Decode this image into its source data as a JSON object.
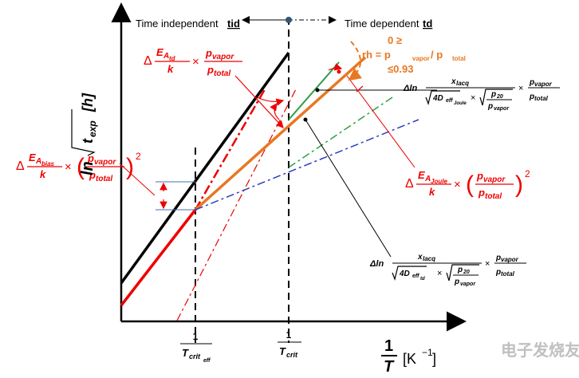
{
  "header": {
    "left": {
      "text": "Time independent",
      "tag": "tid"
    },
    "right": {
      "text": "Time dependent",
      "tag": "td"
    }
  },
  "rh": {
    "line1": "0 ≥",
    "a": "rh = p",
    "b": "vapor",
    "c": " / p",
    "d": "total",
    "line3": "≤0.93"
  },
  "axes": {
    "y": {
      "ln": "ln",
      "t": "t",
      "sub": "exp",
      "unit": "[h]"
    },
    "x": {
      "num": "1",
      "den": "T",
      "unit": "[K",
      "exp": "−1",
      "close": "]"
    }
  },
  "ticks": [
    {
      "num": "1",
      "den": "T",
      "sub": "crit",
      "subsub": "eff"
    },
    {
      "num": "1",
      "den": "T",
      "sub": "crit"
    }
  ],
  "formulas": {
    "td": {
      "delta": "Δ",
      "e": "E",
      "a": "A",
      "act": "td",
      "k": "k",
      "times": "×",
      "p1": "p",
      "s1": "vapor",
      "p2": "p",
      "s2": "total"
    },
    "bias": {
      "delta": "Δ",
      "e": "E",
      "a": "A",
      "act": "bias",
      "k": "k",
      "times": "×",
      "open": "(",
      "p1": "p",
      "s1": "vapor",
      "p2": "p",
      "s2": "total",
      "close": ")",
      "pow": "2"
    },
    "joule": {
      "delta": "Δ",
      "e": "E",
      "a": "A",
      "act": "Joule",
      "k": "k",
      "times": "×",
      "open": "(",
      "p1": "p",
      "s1": "vapor",
      "p2": "p",
      "s2": "total",
      "close": ")",
      "pow": "2"
    },
    "lacq_joule": {
      "dln": "Δln",
      "x": "x",
      "xs": "lacq",
      "d": "4D",
      "ds": "eff",
      "dss": "Joule",
      "times": "×",
      "r1": "p",
      "r1s": "20",
      "r2": "p",
      "r2s": "vapor",
      "times2": "×",
      "p1": "p",
      "s1": "vapor",
      "p2": "p",
      "s2": "total"
    },
    "lacq_td": {
      "dln": "Δln",
      "x": "x",
      "xs": "lacq",
      "d": "4D",
      "ds": "eff",
      "dss": "td",
      "times": "×",
      "r1": "p",
      "r1s": "20",
      "r2": "p",
      "r2s": "vapor",
      "times2": "×",
      "p1": "p",
      "s1": "vapor",
      "p2": "p",
      "s2": "total"
    }
  },
  "watermark": "电子发烧友"
}
